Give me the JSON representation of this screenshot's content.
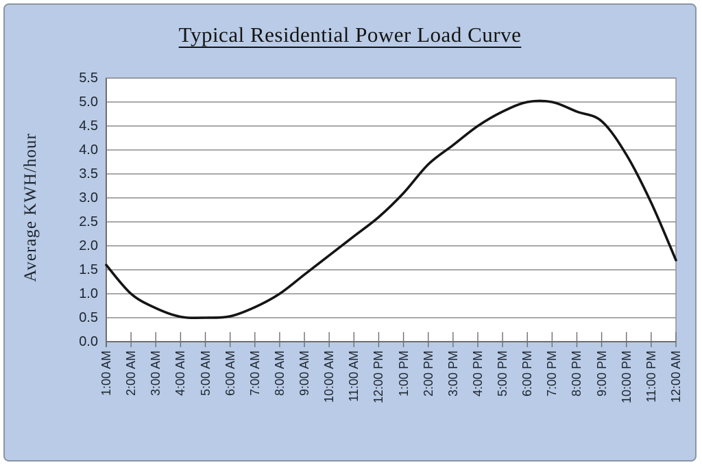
{
  "chart_data": {
    "type": "line",
    "title": "Typical Residential Power Load Curve",
    "xlabel": "",
    "ylabel": "Average KWH/hour",
    "x": [
      "1:00 AM",
      "2:00 AM",
      "3:00 AM",
      "4:00 AM",
      "5:00 AM",
      "6:00 AM",
      "7:00 AM",
      "8:00 AM",
      "9:00 AM",
      "10:00 AM",
      "11:00 AM",
      "12:00 PM",
      "1:00 PM",
      "2:00 PM",
      "3:00 PM",
      "4:00 PM",
      "5:00 PM",
      "6:00 PM",
      "7:00 PM",
      "8:00 PM",
      "9:00 PM",
      "10:00 PM",
      "11:00 PM",
      "12:00 AM"
    ],
    "values": [
      1.6,
      1.0,
      0.7,
      0.52,
      0.5,
      0.53,
      0.72,
      1.0,
      1.4,
      1.8,
      2.2,
      2.6,
      3.1,
      3.7,
      4.1,
      4.5,
      4.8,
      5.0,
      5.0,
      4.8,
      4.6,
      3.9,
      2.9,
      1.7
    ],
    "ylim": [
      0,
      5.5
    ],
    "ytick_step": 0.5,
    "ytick_decimals": 1,
    "grid": true,
    "smooth": true,
    "legend_position": "none",
    "colors": {
      "panel_background": "#b9cbe6",
      "panel_border": "#8b94a3",
      "plot_background": "#ffffff",
      "gridline": "#8c8c8c",
      "axis": "#6e6e6e",
      "line": "#141414",
      "text": "#1d242e"
    }
  }
}
